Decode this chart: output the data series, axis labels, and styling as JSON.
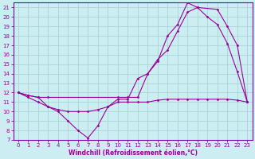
{
  "xlabel": "Windchill (Refroidissement éolien,°C)",
  "bg_color": "#cceef2",
  "grid_color": "#aad4d8",
  "line_color": "#990099",
  "spine_color": "#7700aa",
  "xlim": [
    -0.5,
    23.5
  ],
  "ylim": [
    7,
    21.5
  ],
  "xticks": [
    0,
    1,
    2,
    3,
    4,
    5,
    6,
    7,
    8,
    9,
    10,
    11,
    12,
    13,
    14,
    15,
    16,
    17,
    18,
    19,
    20,
    21,
    22,
    23
  ],
  "yticks": [
    7,
    8,
    9,
    10,
    11,
    12,
    13,
    14,
    15,
    16,
    17,
    18,
    19,
    20,
    21
  ],
  "line1_x": [
    0,
    1,
    2,
    3,
    4,
    5,
    6,
    7,
    8,
    9,
    10,
    11,
    12,
    13,
    14,
    15,
    16,
    17,
    18,
    19,
    20,
    21,
    22,
    23
  ],
  "line1_y": [
    12,
    11.7,
    11.5,
    10.5,
    10.0,
    9.0,
    8.0,
    7.2,
    8.5,
    10.5,
    11.3,
    11.3,
    13.5,
    14.0,
    15.3,
    18.0,
    19.2,
    21.5,
    21.0,
    20.0,
    19.2,
    17.2,
    14.2,
    11.0
  ],
  "line2_x": [
    0,
    1,
    2,
    3,
    10,
    11,
    12,
    13,
    14,
    15,
    16,
    17,
    18,
    20,
    21,
    22,
    23
  ],
  "line2_y": [
    12,
    11.7,
    11.5,
    11.5,
    11.5,
    11.5,
    11.5,
    14.0,
    15.5,
    16.5,
    18.5,
    20.5,
    21.0,
    20.8,
    19.0,
    17.0,
    11.0
  ],
  "line3_x": [
    0,
    1,
    2,
    3,
    4,
    5,
    6,
    7,
    8,
    9,
    10,
    11,
    12,
    13,
    14,
    15,
    16,
    17,
    18,
    19,
    20,
    21,
    22,
    23
  ],
  "line3_y": [
    12,
    11.5,
    11.0,
    10.5,
    10.2,
    10.0,
    10.0,
    10.0,
    10.2,
    10.5,
    11.0,
    11.0,
    11.0,
    11.0,
    11.2,
    11.3,
    11.3,
    11.3,
    11.3,
    11.3,
    11.3,
    11.3,
    11.2,
    11.0
  ],
  "tick_fontsize": 5,
  "xlabel_fontsize": 5.5
}
